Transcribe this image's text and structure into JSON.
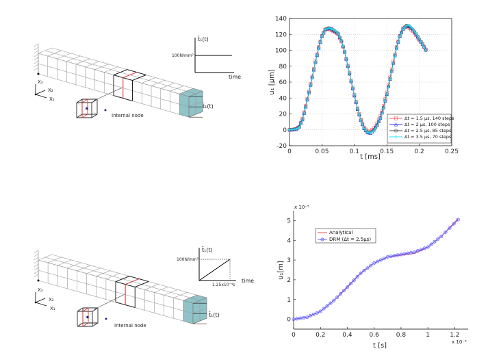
{
  "diagram_top": {
    "load_label": "t̄₁(t)",
    "load_value": "100N/mm²",
    "time_label": "time",
    "end_load_label": "t̄₁(t)",
    "internal_node_label": "Internal node",
    "axis_x1": "X₁",
    "axis_x2": "X₂",
    "axis_x3": "X₃",
    "load_shape": "step"
  },
  "diagram_bottom": {
    "load_label": "t̄₁(t)",
    "load_value": "100N/mm²",
    "time_label": "time",
    "ramp_time": "1.25x10⁻⁴s",
    "end_load_label": "t̄₁(t)",
    "internal_node_label": "Internal node",
    "axis_x1": "X₁",
    "axis_x2": "X₂",
    "axis_x3": "X₃",
    "load_shape": "ramp"
  },
  "colors": {
    "mesh_highlight": "#e03030",
    "loaded_face": "#8fc3c8",
    "internal_node": "#1a2a8a"
  },
  "chart_data": [
    {
      "type": "line",
      "xlabel": "t [ms]",
      "ylabel": "u₁ [μm]",
      "xlim": [
        0,
        0.25
      ],
      "ylim": [
        -20,
        140
      ],
      "xticks": [
        "0",
        "0.05",
        "0.1",
        "0.15",
        "0.2",
        "0.25"
      ],
      "yticks": [
        "-20",
        "0",
        "20",
        "40",
        "60",
        "80",
        "100",
        "120",
        "140"
      ],
      "grid": true,
      "legend_position": "bottom-right",
      "x": [
        0,
        0.005,
        0.01,
        0.015,
        0.02,
        0.025,
        0.03,
        0.035,
        0.04,
        0.045,
        0.05,
        0.055,
        0.06,
        0.065,
        0.07,
        0.075,
        0.08,
        0.085,
        0.09,
        0.095,
        0.1,
        0.105,
        0.11,
        0.115,
        0.12,
        0.125,
        0.13,
        0.135,
        0.14,
        0.145,
        0.15,
        0.155,
        0.16,
        0.165,
        0.17,
        0.175,
        0.18,
        0.185,
        0.19,
        0.195,
        0.2,
        0.205,
        0.21
      ],
      "series": [
        {
          "name": "Δt = 1.5 μs, 140 steps",
          "color": "#ff5555",
          "marker": "square",
          "values": [
            0,
            0.3,
            1,
            4,
            14,
            30,
            48,
            67,
            86,
            104,
            118,
            126,
            127,
            125,
            123,
            120,
            111,
            98,
            81,
            62,
            44,
            27,
            13,
            3,
            -2,
            -2,
            2,
            8,
            17,
            30,
            47,
            66,
            86,
            104,
            118,
            127,
            130,
            128,
            124,
            119,
            113,
            108,
            101
          ]
        },
        {
          "name": "Δt = 2 μs, 100 steps",
          "color": "#3333ff",
          "marker": "triangle",
          "values": [
            0,
            0.3,
            1,
            4,
            13,
            29,
            47,
            66,
            85,
            103,
            118,
            126,
            128,
            127,
            124,
            121,
            112,
            98,
            80,
            61,
            43,
            26,
            12,
            2,
            -3,
            -4,
            0,
            6,
            15,
            28,
            45,
            64,
            84,
            103,
            118,
            127,
            131,
            130,
            126,
            120,
            114,
            108,
            101
          ]
        },
        {
          "name": "Δt = 2.5 μs, 85 steps",
          "color": "#444444",
          "marker": "circle",
          "values": [
            0,
            0.3,
            1,
            4,
            13,
            29,
            47,
            66,
            85,
            103,
            118,
            126,
            128,
            127,
            124,
            121,
            112,
            98,
            80,
            61,
            43,
            26,
            12,
            2,
            -3,
            -4,
            0,
            6,
            15,
            28,
            45,
            64,
            84,
            103,
            118,
            127,
            131,
            130,
            126,
            121,
            114,
            108,
            100
          ]
        },
        {
          "name": "Δt = 3.5 μs, 70 steps",
          "color": "#22e0f0",
          "marker": "star",
          "values": [
            0,
            0.3,
            1,
            3,
            12,
            28,
            46,
            65,
            84,
            102,
            117,
            126,
            128,
            127,
            125,
            121,
            113,
            99,
            81,
            62,
            44,
            27,
            12,
            2,
            -3,
            -4,
            -1,
            5,
            14,
            27,
            44,
            63,
            83,
            102,
            117,
            126,
            131,
            131,
            127,
            121,
            115,
            108,
            100
          ]
        }
      ]
    },
    {
      "type": "line",
      "xlabel": "t [s]",
      "ylabel": "u₁[m]",
      "x_multiplier": "x 10⁻⁴",
      "y_multiplier": "x 10⁻⁵",
      "xlim": [
        0,
        1.3
      ],
      "ylim": [
        -0.5,
        5.5
      ],
      "xticks": [
        "0",
        "0.2",
        "0.4",
        "0.6",
        "0.8",
        "1",
        "1.2"
      ],
      "yticks": [
        "0",
        "1",
        "2",
        "3",
        "4",
        "5"
      ],
      "grid": false,
      "legend_position": "top-left",
      "x": [
        0,
        0.1,
        0.2,
        0.3,
        0.4,
        0.5,
        0.6,
        0.7,
        0.8,
        0.9,
        1.0,
        1.1,
        1.225
      ],
      "series": [
        {
          "name": "Analytical",
          "color": "#ff3333",
          "marker": "none",
          "values": [
            0,
            0.1,
            0.4,
            0.95,
            1.65,
            2.35,
            2.85,
            3.15,
            3.25,
            3.33,
            3.65,
            4.2,
            5.1
          ]
        },
        {
          "name": "DRM (Δt = 2.5μs)",
          "color": "#5555ff",
          "marker": "circle",
          "values": [
            0,
            0.1,
            0.4,
            0.95,
            1.62,
            2.33,
            2.85,
            3.16,
            3.28,
            3.4,
            3.66,
            4.2,
            5.05
          ]
        }
      ]
    }
  ]
}
